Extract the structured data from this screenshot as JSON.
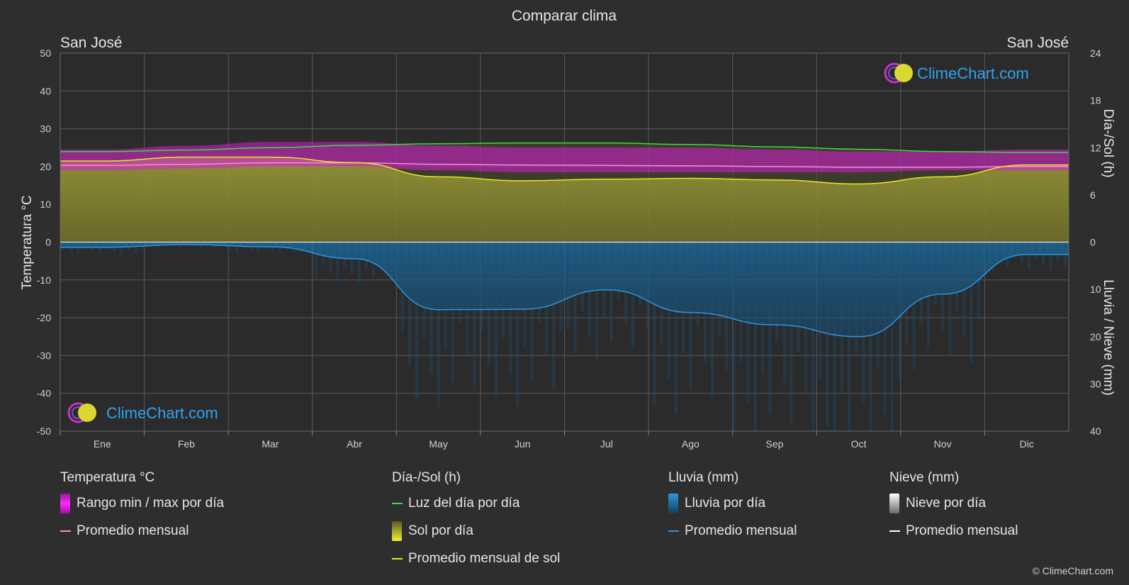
{
  "title": "Comparar clima",
  "city_left": "San José",
  "city_right": "San José",
  "copyright": "© ClimeChart.com",
  "logo_text": "ClimeChart.com",
  "colors": {
    "background": "#2e2e2e",
    "grid": "#5a5a5a",
    "temp_range": "#d81bd8",
    "temp_avg": "#f48fd4",
    "daylight": "#3ddc3d",
    "sun_fill": "#8c8c32",
    "sun_avg": "#e8e820",
    "rain_fill": "#1a6fa3",
    "rain_avg": "#2e96e0",
    "snow": "#ffffff",
    "logo_blue": "#2ea3f2"
  },
  "legend": {
    "temp": {
      "title": "Temperatura °C",
      "range": "Rango min / max por día",
      "avg": "Promedio mensual"
    },
    "sun": {
      "title": "Día-/Sol (h)",
      "daylight": "Luz del día por día",
      "sun": "Sol por día",
      "sun_avg": "Promedio mensual de sol"
    },
    "rain": {
      "title": "Lluvia (mm)",
      "rain": "Lluvia por día",
      "avg": "Promedio mensual"
    },
    "snow": {
      "title": "Nieve (mm)",
      "snow": "Nieve por día",
      "avg": "Promedio mensual"
    }
  },
  "chart_data": {
    "type": "area",
    "title": "Comparar clima",
    "categories": [
      "Ene",
      "Feb",
      "Mar",
      "Abr",
      "May",
      "Jun",
      "Jul",
      "Ago",
      "Sep",
      "Oct",
      "Nov",
      "Dic"
    ],
    "y_left": {
      "label": "Temperatura °C",
      "range": [
        -50,
        50
      ],
      "ticks": [
        50,
        40,
        30,
        20,
        10,
        0,
        -10,
        -20,
        -30,
        -40,
        -50
      ]
    },
    "y_right_top": {
      "label": "Día-/Sol (h)",
      "range": [
        0,
        24
      ],
      "ticks": [
        24,
        18,
        12,
        6,
        0
      ]
    },
    "y_right_bottom": {
      "label": "Lluvia / Nieve (mm)",
      "range": [
        0,
        40
      ],
      "ticks": [
        0,
        10,
        20,
        30,
        40
      ]
    },
    "grid": true,
    "series": [
      {
        "name": "Rango min / max por día",
        "axis": "temp",
        "min": [
          19,
          19.5,
          20,
          20,
          19,
          18.5,
          18.5,
          18.5,
          18.5,
          18.5,
          19,
          19
        ],
        "max": [
          24.5,
          25.5,
          26.5,
          26.5,
          25.5,
          25,
          25,
          25,
          24.5,
          24,
          24,
          24.5
        ]
      },
      {
        "name": "Promedio mensual",
        "axis": "temp",
        "values": [
          20.3,
          20.6,
          21,
          21,
          20.6,
          20.4,
          20.3,
          20.2,
          20,
          19.8,
          19.8,
          20
        ]
      },
      {
        "name": "Luz del día por día",
        "axis": "sun",
        "values": [
          11.5,
          11.7,
          12,
          12.3,
          12.5,
          12.6,
          12.6,
          12.4,
          12.1,
          11.8,
          11.5,
          11.4
        ]
      },
      {
        "name": "Promedio mensual de sol",
        "axis": "sun",
        "values": [
          10.3,
          10.8,
          10.8,
          10.1,
          8.3,
          7.8,
          8,
          8.1,
          7.9,
          7.4,
          8.3,
          9.8
        ]
      },
      {
        "name": "Promedio mensual",
        "axis": "rain",
        "values": [
          1.1,
          0.5,
          1,
          3.5,
          14.3,
          14.2,
          10.1,
          14.9,
          17.5,
          20,
          11,
          2.6
        ]
      }
    ]
  }
}
